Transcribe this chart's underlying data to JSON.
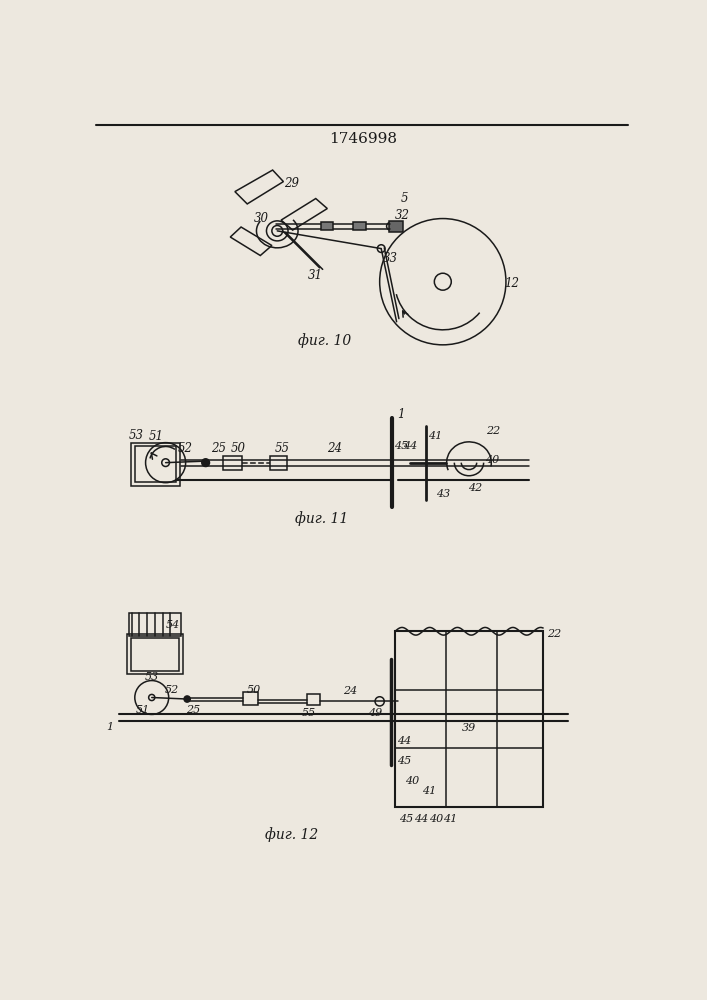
{
  "title": "1746998",
  "fig10_label": "фиг. 10",
  "fig11_label": "фиг. 11",
  "fig12_label": "фиг. 12",
  "bg_color": "#ede8df",
  "line_color": "#1a1a1a",
  "lw": 1.1
}
